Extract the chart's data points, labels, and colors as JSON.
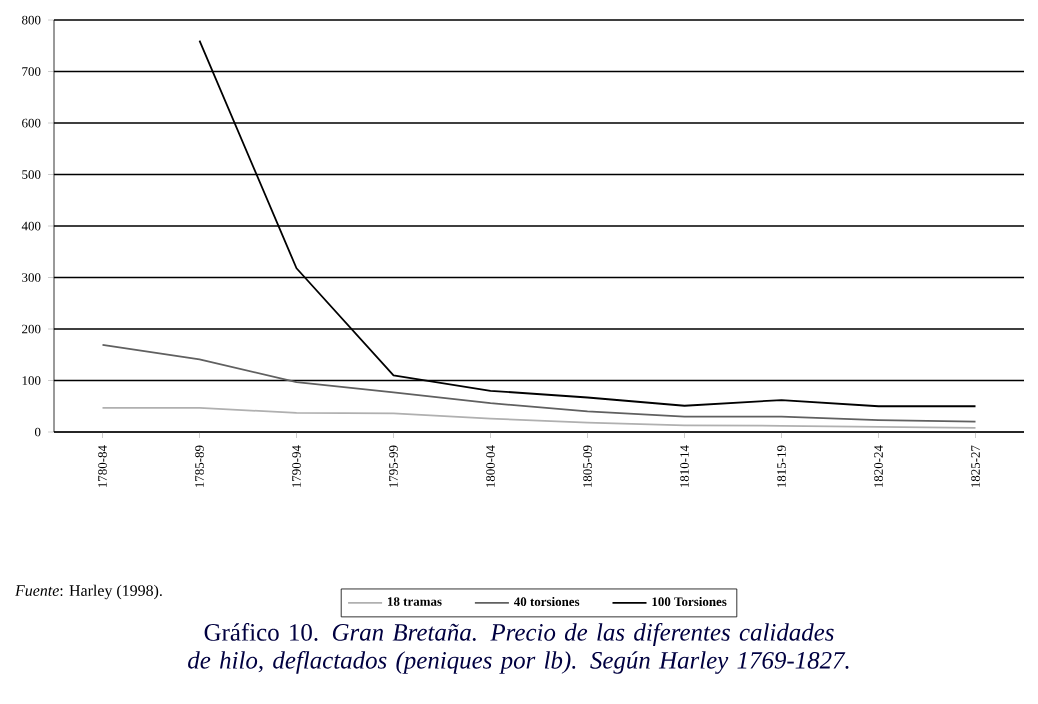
{
  "chart_data": {
    "type": "line",
    "title": "Gráfico 10. *Gran Bretaña. Precio de las diferentes calidades de hilo, deflactados (peniques por lb). Según Harley 1769-1827.*",
    "annotations": [
      "*Fuente*: Harley (1998)."
    ],
    "categories": [
      "1780-84",
      "1785-89",
      "1790-94",
      "1795-99",
      "1800-04",
      "1805-09",
      "1810-14",
      "1815-19",
      "1820-24",
      "1825-27"
    ],
    "series": [
      {
        "name": "18 tramas",
        "color": "#b0b0b0",
        "values": [
          47,
          47,
          37,
          36,
          26,
          18,
          13,
          12,
          10,
          8
        ]
      },
      {
        "name": "40 torsiones",
        "color": "#606060",
        "values": [
          169,
          141,
          97,
          77,
          56,
          40,
          30,
          30,
          23,
          20
        ]
      },
      {
        "name": "100 Torsiones",
        "color": "#000000",
        "values": [
          null,
          760,
          318,
          110,
          80,
          67,
          51,
          62,
          50,
          50
        ]
      }
    ],
    "ylim": [
      0,
      800
    ],
    "yticks": [
      0,
      100,
      200,
      300,
      400,
      500,
      600,
      700,
      800
    ],
    "grid": "y",
    "legend": "bottom",
    "marker": "none",
    "line_style": "solid"
  }
}
